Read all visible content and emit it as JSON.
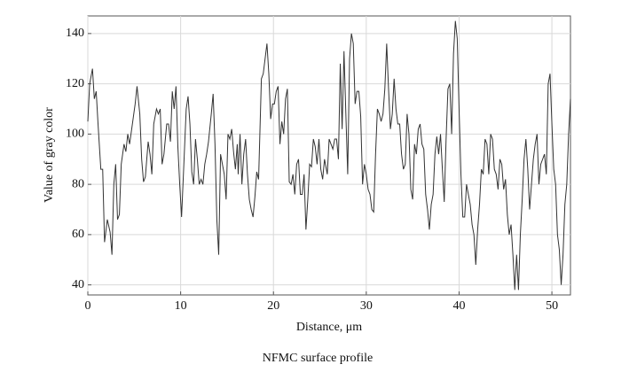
{
  "chart_data": {
    "type": "line",
    "caption": "NFMC surface profile",
    "x_label": "Distance, μm",
    "y_label": "Value of gray color",
    "x": [
      0,
      0.2,
      0.5,
      0.7,
      0.9,
      1.1,
      1.4,
      1.6,
      1.8,
      2.1,
      2.4,
      2.6,
      2.8,
      3.0,
      3.2,
      3.4,
      3.6,
      3.9,
      4.1,
      4.3,
      4.5,
      4.8,
      5.1,
      5.3,
      5.6,
      5.8,
      6.0,
      6.2,
      6.5,
      6.7,
      6.9,
      7.1,
      7.4,
      7.6,
      7.8,
      8.0,
      8.2,
      8.5,
      8.7,
      8.9,
      9.1,
      9.3,
      9.5,
      9.7,
      9.9,
      10.1,
      10.3,
      10.6,
      10.8,
      11.0,
      11.2,
      11.4,
      11.6,
      11.8,
      12.0,
      12.2,
      12.4,
      12.6,
      12.8,
      13.0,
      13.3,
      13.5,
      13.7,
      13.9,
      14.1,
      14.3,
      14.5,
      14.7,
      14.9,
      15.1,
      15.3,
      15.5,
      15.7,
      15.9,
      16.1,
      16.2,
      16.4,
      16.6,
      16.8,
      17.0,
      17.2,
      17.4,
      17.6,
      17.8,
      18.0,
      18.2,
      18.4,
      18.7,
      18.9,
      19.1,
      19.3,
      19.5,
      19.7,
      19.9,
      20.1,
      20.3,
      20.5,
      20.7,
      20.9,
      21.1,
      21.3,
      21.5,
      21.7,
      21.9,
      22.1,
      22.3,
      22.5,
      22.7,
      22.9,
      23.1,
      23.3,
      23.5,
      23.7,
      23.9,
      24.1,
      24.3,
      24.5,
      24.7,
      24.9,
      25.1,
      25.3,
      25.5,
      25.8,
      26.0,
      26.2,
      26.4,
      26.6,
      26.8,
      27.0,
      27.2,
      27.4,
      27.6,
      27.8,
      28.0,
      28.2,
      28.4,
      28.6,
      28.8,
      29.0,
      29.2,
      29.4,
      29.6,
      29.8,
      30.0,
      30.2,
      30.4,
      30.6,
      30.8,
      31.0,
      31.2,
      31.4,
      31.6,
      31.8,
      32.0,
      32.2,
      32.4,
      32.6,
      32.8,
      33.0,
      33.2,
      33.4,
      33.6,
      33.8,
      34.0,
      34.2,
      34.4,
      34.6,
      34.8,
      35.0,
      35.2,
      35.4,
      35.6,
      35.8,
      36.0,
      36.2,
      36.4,
      36.6,
      36.8,
      37.0,
      37.2,
      37.4,
      37.6,
      37.8,
      38.0,
      38.2,
      38.4,
      38.6,
      38.8,
      39.0,
      39.2,
      39.4,
      39.6,
      39.8,
      40.0,
      40.2,
      40.4,
      40.6,
      40.8,
      41.0,
      41.2,
      41.4,
      41.6,
      41.8,
      42.0,
      42.2,
      42.4,
      42.6,
      42.8,
      43.0,
      43.2,
      43.4,
      43.6,
      43.8,
      44.0,
      44.2,
      44.4,
      44.6,
      44.8,
      45.0,
      45.2,
      45.4,
      45.6,
      45.8,
      46.0,
      46.2,
      46.4,
      46.6,
      46.8,
      47.0,
      47.2,
      47.4,
      47.6,
      47.8,
      48.0,
      48.2,
      48.4,
      48.6,
      48.8,
      49.0,
      49.2,
      49.4,
      49.6,
      49.8,
      50.0,
      50.2,
      50.4,
      50.6,
      50.8,
      51.0,
      51.2,
      51.4,
      51.6,
      51.8,
      52.0
    ],
    "values": [
      105,
      120,
      126,
      114,
      117,
      104,
      86,
      86,
      57,
      66,
      61,
      52,
      80,
      88,
      66,
      68,
      88,
      96,
      93,
      100,
      96,
      104,
      112,
      119,
      108,
      90,
      81,
      83,
      97,
      92,
      84,
      104,
      110,
      108,
      110,
      88,
      92,
      104,
      104,
      97,
      117,
      110,
      119,
      95,
      80,
      67,
      84,
      110,
      115,
      104,
      85,
      80,
      98,
      90,
      80,
      82,
      80,
      88,
      92,
      97,
      108,
      116,
      96,
      66,
      52,
      92,
      88,
      84,
      74,
      100,
      98,
      102,
      93,
      86,
      96,
      84,
      100,
      80,
      92,
      98,
      84,
      74,
      70,
      67,
      75,
      85,
      82,
      122,
      124,
      130,
      136,
      124,
      106,
      112,
      112,
      117,
      119,
      96,
      105,
      100,
      114,
      118,
      81,
      80,
      84,
      76,
      88,
      90,
      76,
      76,
      84,
      62,
      74,
      88,
      87,
      98,
      95,
      88,
      98,
      86,
      82,
      90,
      84,
      98,
      96,
      94,
      98,
      98,
      90,
      128,
      102,
      133,
      108,
      84,
      130,
      140,
      136,
      112,
      117,
      117,
      107,
      80,
      88,
      84,
      78,
      76,
      70,
      69,
      92,
      110,
      108,
      105,
      108,
      118,
      136,
      118,
      102,
      108,
      122,
      110,
      104,
      104,
      92,
      86,
      88,
      108,
      100,
      78,
      74,
      96,
      92,
      102,
      104,
      96,
      94,
      76,
      70,
      62,
      72,
      76,
      92,
      99,
      92,
      100,
      86,
      73,
      98,
      118,
      120,
      100,
      132,
      145,
      138,
      110,
      84,
      67,
      67,
      80,
      76,
      72,
      64,
      60,
      48,
      62,
      72,
      86,
      84,
      98,
      96,
      84,
      100,
      98,
      86,
      84,
      78,
      90,
      88,
      78,
      82,
      68,
      60,
      64,
      52,
      38,
      52,
      38,
      60,
      74,
      90,
      98,
      86,
      70,
      80,
      90,
      96,
      100,
      80,
      88,
      90,
      92,
      84,
      120,
      124,
      104,
      86,
      80,
      60,
      54,
      40,
      52,
      72,
      80,
      100,
      114
    ],
    "color": "#333333",
    "xlim": [
      0,
      52
    ],
    "ylim": [
      36,
      147
    ],
    "xticks": [
      0,
      10,
      20,
      30,
      40,
      50
    ],
    "yticks": [
      40,
      60,
      80,
      100,
      120,
      140
    ],
    "grid": true
  }
}
